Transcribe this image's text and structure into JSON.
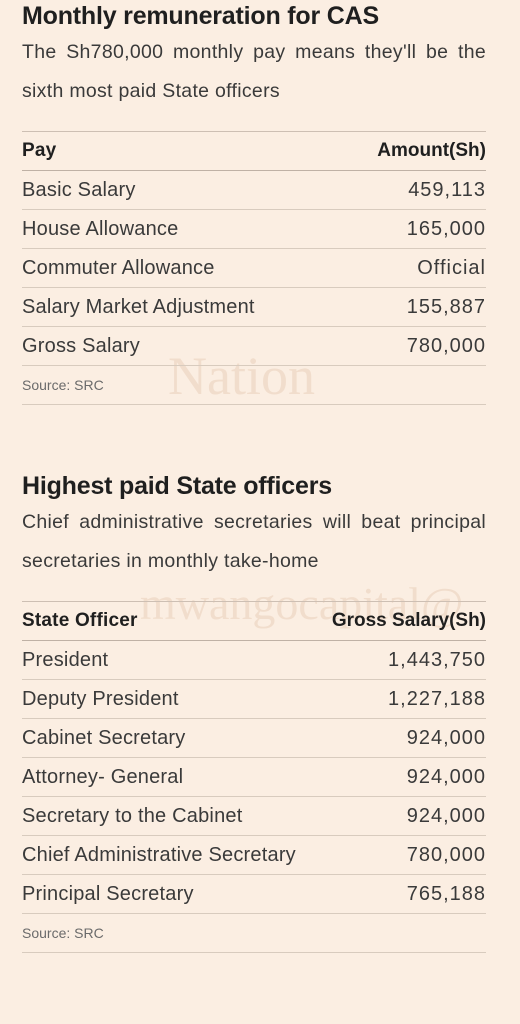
{
  "watermarks": [
    "Nation",
    "mwangocapital@"
  ],
  "section1": {
    "title": "Monthly remuneration for CAS",
    "subtitle": "The Sh780,000 monthly pay means they'll be the sixth most paid State officers",
    "table": {
      "headers": [
        "Pay",
        "Amount(Sh)"
      ],
      "rows": [
        [
          "Basic Salary",
          "459,113"
        ],
        [
          "House Allowance",
          "165,000"
        ],
        [
          "Commuter Allowance",
          "Official"
        ],
        [
          "Salary Market Adjustment",
          "155,887"
        ],
        [
          "Gross Salary",
          "780,000"
        ]
      ]
    },
    "source": "Source: SRC"
  },
  "section2": {
    "title": "Highest paid State officers",
    "subtitle": "Chief administrative secretaries will beat principal secretaries in monthly take-home",
    "table": {
      "headers": [
        "State Officer",
        "Gross Salary(Sh)"
      ],
      "rows": [
        [
          "President",
          "1,443,750"
        ],
        [
          "Deputy President",
          "1,227,188"
        ],
        [
          "Cabinet Secretary",
          "924,000"
        ],
        [
          "Attorney- General",
          "924,000"
        ],
        [
          "Secretary to the Cabinet",
          "924,000"
        ],
        [
          "Chief Administrative Secretary",
          "780,000"
        ],
        [
          "Principal Secretary",
          "765,188"
        ]
      ]
    },
    "source": "Source: SRC"
  }
}
